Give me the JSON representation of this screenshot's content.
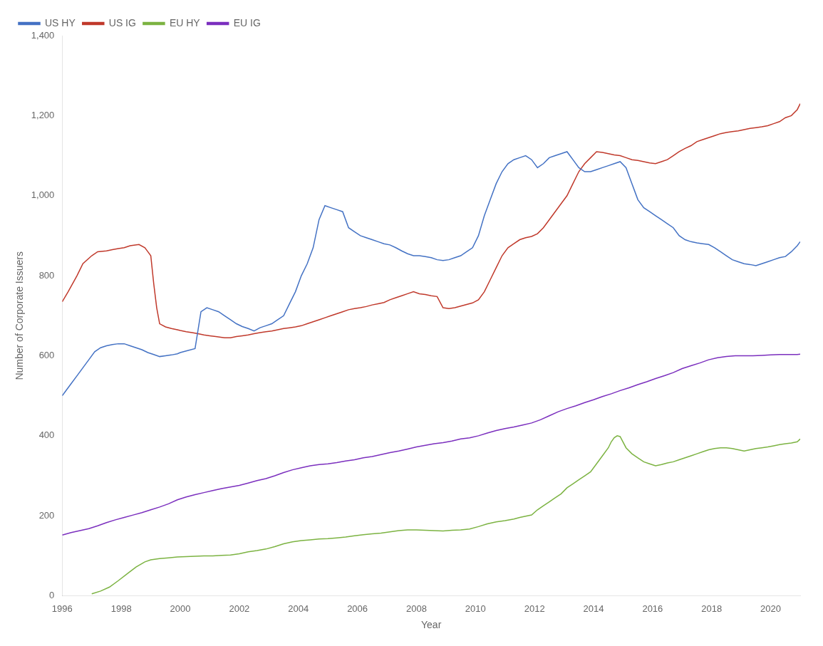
{
  "chart_data": {
    "type": "line",
    "xlabel": "Year",
    "ylabel": "Number of Corporate Issuers",
    "xlim": [
      1996,
      2021
    ],
    "ylim": [
      0,
      1400
    ],
    "xticks": [
      1996,
      1998,
      2000,
      2002,
      2004,
      2006,
      2008,
      2010,
      2012,
      2014,
      2016,
      2018,
      2020
    ],
    "yticks": [
      0,
      200,
      400,
      600,
      800,
      {
        "value": 1000,
        "label": "1,000"
      },
      {
        "value": 1200,
        "label": "1,200"
      },
      {
        "value": 1400,
        "label": "1,400"
      }
    ],
    "grid": false,
    "legend": "upper left",
    "series": [
      {
        "name": "US HY",
        "color": "#4472C4",
        "x": [
          1996.0,
          1996.1,
          1996.3,
          1996.5,
          1996.7,
          1996.9,
          1997.1,
          1997.3,
          1997.5,
          1997.7,
          1997.9,
          1998.1,
          1998.3,
          1998.5,
          1998.7,
          1998.9,
          1999.1,
          1999.3,
          1999.5,
          1999.7,
          1999.9,
          2000.0,
          2000.2,
          2000.5,
          2000.7,
          2000.9,
          2001.1,
          2001.3,
          2001.5,
          2001.7,
          2001.9,
          2002.1,
          2002.3,
          2002.5,
          2002.7,
          2002.9,
          2003.1,
          2003.3,
          2003.5,
          2003.7,
          2003.9,
          2004.1,
          2004.3,
          2004.5,
          2004.7,
          2004.9,
          2005.1,
          2005.3,
          2005.5,
          2005.7,
          2005.9,
          2006.1,
          2006.3,
          2006.5,
          2006.7,
          2006.9,
          2007.1,
          2007.3,
          2007.5,
          2007.7,
          2007.9,
          2008.1,
          2008.3,
          2008.5,
          2008.7,
          2008.9,
          2009.1,
          2009.3,
          2009.5,
          2009.7,
          2009.9,
          2010.1,
          2010.3,
          2010.5,
          2010.7,
          2010.9,
          2011.1,
          2011.3,
          2011.5,
          2011.7,
          2011.9,
          2012.1,
          2012.3,
          2012.5,
          2012.7,
          2012.9,
          2013.1,
          2013.2,
          2013.3,
          2013.5,
          2013.7,
          2013.9,
          2014.1,
          2014.3,
          2014.5,
          2014.7,
          2014.9,
          2015.1,
          2015.2,
          2015.3,
          2015.4,
          2015.5,
          2015.7,
          2015.9,
          2016.1,
          2016.3,
          2016.5,
          2016.7,
          2016.9,
          2017.1,
          2017.3,
          2017.5,
          2017.7,
          2017.9,
          2018.1,
          2018.3,
          2018.5,
          2018.7,
          2018.9,
          2019.1,
          2019.3,
          2019.5,
          2019.7,
          2019.9,
          2020.1,
          2020.3,
          2020.5,
          2020.7,
          2020.9,
          2021.0
        ],
        "values": [
          500,
          510,
          530,
          550,
          570,
          590,
          610,
          620,
          625,
          628,
          630,
          630,
          625,
          620,
          615,
          608,
          603,
          598,
          600,
          602,
          605,
          608,
          612,
          618,
          710,
          720,
          715,
          710,
          700,
          690,
          680,
          673,
          668,
          662,
          670,
          675,
          680,
          690,
          700,
          730,
          760,
          800,
          830,
          870,
          940,
          975,
          970,
          965,
          960,
          920,
          910,
          900,
          895,
          890,
          885,
          880,
          877,
          870,
          862,
          855,
          850,
          850,
          848,
          845,
          840,
          838,
          840,
          845,
          850,
          860,
          870,
          900,
          950,
          990,
          1030,
          1060,
          1080,
          1090,
          1095,
          1100,
          1090,
          1070,
          1080,
          1095,
          1100,
          1105,
          1110,
          1100,
          1090,
          1070,
          1060,
          1060,
          1065,
          1070,
          1075,
          1080,
          1085,
          1070,
          1050,
          1030,
          1010,
          990,
          970,
          960,
          950,
          940,
          930,
          920,
          900,
          890,
          885,
          882,
          880,
          878,
          870,
          860,
          850,
          840,
          835,
          830,
          828,
          825,
          830,
          835,
          840,
          845,
          848,
          860,
          875,
          885
        ]
      },
      {
        "name": "US IG",
        "color": "#C0392B",
        "x": [
          1996.0,
          1996.2,
          1996.5,
          1996.7,
          1997.0,
          1997.2,
          1997.5,
          1997.7,
          1997.9,
          1998.1,
          1998.3,
          1998.6,
          1998.8,
          1998.9,
          1999.0,
          1999.1,
          1999.2,
          1999.3,
          1999.5,
          1999.7,
          1999.9,
          2000.0,
          2000.2,
          2000.4,
          2000.6,
          2000.8,
          2001.0,
          2001.2,
          2001.5,
          2001.7,
          2001.9,
          2002.1,
          2002.3,
          2002.5,
          2002.7,
          2002.9,
          2003.1,
          2003.3,
          2003.5,
          2003.7,
          2003.9,
          2004.1,
          2004.3,
          2004.5,
          2004.7,
          2004.9,
          2005.1,
          2005.3,
          2005.5,
          2005.7,
          2005.9,
          2006.1,
          2006.3,
          2006.5,
          2006.7,
          2006.9,
          2007.1,
          2007.3,
          2007.5,
          2007.7,
          2007.9,
          2008.1,
          2008.3,
          2008.5,
          2008.7,
          2008.9,
          2009.1,
          2009.3,
          2009.5,
          2009.7,
          2009.9,
          2010.1,
          2010.3,
          2010.5,
          2010.7,
          2010.9,
          2011.1,
          2011.3,
          2011.5,
          2011.7,
          2011.9,
          2012.1,
          2012.3,
          2012.5,
          2012.7,
          2012.9,
          2013.1,
          2013.3,
          2013.5,
          2013.7,
          2013.9,
          2014.1,
          2014.3,
          2014.5,
          2014.7,
          2014.9,
          2015.1,
          2015.3,
          2015.5,
          2015.7,
          2015.9,
          2016.1,
          2016.3,
          2016.5,
          2016.7,
          2016.9,
          2017.1,
          2017.3,
          2017.5,
          2017.7,
          2017.9,
          2018.1,
          2018.3,
          2018.5,
          2018.7,
          2018.9,
          2019.1,
          2019.3,
          2019.5,
          2019.7,
          2019.9,
          2020.1,
          2020.3,
          2020.5,
          2020.7,
          2020.9,
          2021.0
        ],
        "values": [
          735,
          760,
          800,
          830,
          850,
          860,
          862,
          865,
          868,
          870,
          875,
          878,
          870,
          860,
          850,
          780,
          720,
          680,
          672,
          668,
          665,
          663,
          660,
          658,
          655,
          652,
          650,
          648,
          645,
          645,
          648,
          650,
          652,
          655,
          658,
          660,
          662,
          665,
          668,
          670,
          672,
          675,
          680,
          685,
          690,
          695,
          700,
          705,
          710,
          715,
          718,
          720,
          723,
          727,
          730,
          733,
          740,
          745,
          750,
          755,
          760,
          755,
          753,
          750,
          748,
          720,
          718,
          720,
          724,
          728,
          732,
          740,
          760,
          790,
          820,
          850,
          870,
          880,
          890,
          895,
          898,
          905,
          920,
          940,
          960,
          980,
          1000,
          1030,
          1060,
          1080,
          1095,
          1110,
          1108,
          1105,
          1102,
          1100,
          1095,
          1090,
          1088,
          1085,
          1082,
          1080,
          1085,
          1090,
          1100,
          1110,
          1118,
          1125,
          1135,
          1140,
          1145,
          1150,
          1155,
          1158,
          1160,
          1162,
          1165,
          1168,
          1170,
          1172,
          1175,
          1180,
          1185,
          1195,
          1200,
          1215,
          1230
        ]
      },
      {
        "name": "EU HY",
        "color": "#7CB342",
        "x": [
          1997.0,
          1997.3,
          1997.6,
          1997.9,
          1998.2,
          1998.5,
          1998.8,
          1999.0,
          1999.3,
          1999.6,
          1999.9,
          2000.2,
          2000.5,
          2000.8,
          2001.1,
          2001.4,
          2001.7,
          2002.0,
          2002.3,
          2002.6,
          2002.9,
          2003.2,
          2003.5,
          2003.8,
          2004.1,
          2004.4,
          2004.7,
          2005.0,
          2005.3,
          2005.6,
          2005.9,
          2006.2,
          2006.5,
          2006.8,
          2007.1,
          2007.4,
          2007.7,
          2008.0,
          2008.3,
          2008.6,
          2008.9,
          2009.2,
          2009.5,
          2009.8,
          2010.1,
          2010.4,
          2010.7,
          2011.0,
          2011.3,
          2011.5,
          2011.7,
          2011.9,
          2012.1,
          2012.3,
          2012.5,
          2012.7,
          2012.9,
          2013.1,
          2013.3,
          2013.5,
          2013.7,
          2013.9,
          2014.1,
          2014.3,
          2014.5,
          2014.6,
          2014.7,
          2014.8,
          2014.9,
          2015.1,
          2015.3,
          2015.5,
          2015.7,
          2015.9,
          2016.1,
          2016.3,
          2016.5,
          2016.7,
          2016.9,
          2017.1,
          2017.3,
          2017.5,
          2017.7,
          2017.9,
          2018.1,
          2018.3,
          2018.5,
          2018.7,
          2018.9,
          2019.1,
          2019.3,
          2019.5,
          2019.7,
          2019.9,
          2020.1,
          2020.3,
          2020.5,
          2020.7,
          2020.9,
          2021.0
        ],
        "values": [
          5,
          12,
          22,
          38,
          55,
          72,
          85,
          90,
          93,
          95,
          97,
          98,
          99,
          100,
          100,
          101,
          102,
          105,
          110,
          113,
          117,
          123,
          130,
          135,
          138,
          140,
          142,
          143,
          145,
          147,
          150,
          153,
          155,
          157,
          160,
          163,
          165,
          165,
          164,
          163,
          162,
          164,
          165,
          167,
          173,
          180,
          185,
          188,
          192,
          196,
          199,
          202,
          215,
          225,
          235,
          245,
          255,
          270,
          280,
          290,
          300,
          310,
          330,
          350,
          370,
          385,
          395,
          400,
          398,
          370,
          355,
          345,
          335,
          330,
          325,
          328,
          332,
          335,
          340,
          345,
          350,
          355,
          360,
          365,
          368,
          370,
          370,
          368,
          365,
          362,
          365,
          368,
          370,
          372,
          375,
          378,
          380,
          382,
          385,
          392
        ]
      },
      {
        "name": "EU IG",
        "color": "#7B2FBE",
        "x": [
          1996.0,
          1996.3,
          1996.6,
          1996.9,
          1997.2,
          1997.5,
          1997.8,
          1998.1,
          1998.4,
          1998.7,
          1999.0,
          1999.3,
          1999.6,
          1999.9,
          2000.2,
          2000.5,
          2000.8,
          2001.1,
          2001.4,
          2001.7,
          2002.0,
          2002.3,
          2002.6,
          2002.9,
          2003.2,
          2003.5,
          2003.8,
          2004.1,
          2004.4,
          2004.7,
          2005.0,
          2005.3,
          2005.6,
          2005.9,
          2006.2,
          2006.5,
          2006.8,
          2007.1,
          2007.4,
          2007.7,
          2008.0,
          2008.3,
          2008.6,
          2008.9,
          2009.2,
          2009.5,
          2009.8,
          2010.1,
          2010.4,
          2010.7,
          2011.0,
          2011.3,
          2011.6,
          2011.9,
          2012.2,
          2012.5,
          2012.8,
          2013.1,
          2013.4,
          2013.7,
          2014.0,
          2014.3,
          2014.6,
          2014.9,
          2015.2,
          2015.5,
          2015.8,
          2016.1,
          2016.4,
          2016.7,
          2017.0,
          2017.3,
          2017.6,
          2017.9,
          2018.2,
          2018.5,
          2018.8,
          2019.1,
          2019.4,
          2019.7,
          2020.0,
          2020.3,
          2020.6,
          2020.9,
          2021.0
        ],
        "values": [
          152,
          158,
          163,
          168,
          175,
          183,
          190,
          196,
          202,
          208,
          215,
          222,
          230,
          240,
          247,
          253,
          258,
          263,
          268,
          272,
          276,
          282,
          288,
          293,
          300,
          308,
          315,
          320,
          325,
          328,
          330,
          333,
          337,
          340,
          345,
          348,
          353,
          358,
          362,
          367,
          372,
          376,
          380,
          383,
          387,
          392,
          395,
          400,
          407,
          413,
          418,
          422,
          427,
          432,
          440,
          450,
          460,
          468,
          475,
          483,
          490,
          498,
          505,
          513,
          520,
          528,
          535,
          543,
          550,
          558,
          568,
          575,
          582,
          590,
          595,
          598,
          600,
          600,
          600,
          601,
          602,
          603,
          603,
          603,
          604
        ]
      }
    ]
  }
}
